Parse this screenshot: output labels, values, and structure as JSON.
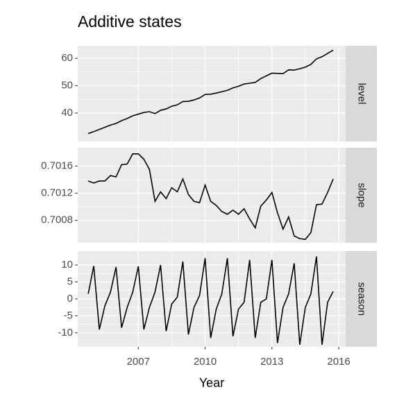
{
  "chart_data": {
    "type": "line",
    "title": "Additive states",
    "xlabel": "Year",
    "color": "#000000",
    "grid": true,
    "xlim": [
      2004.28,
      2016.31
    ],
    "xticks": [
      2007,
      2010,
      2013,
      2016
    ],
    "x": [
      2004.75,
      2005,
      2005.25,
      2005.5,
      2005.75,
      2006,
      2006.25,
      2006.5,
      2006.75,
      2007,
      2007.25,
      2007.5,
      2007.75,
      2008,
      2008.25,
      2008.5,
      2008.75,
      2009,
      2009.25,
      2009.5,
      2009.75,
      2010,
      2010.25,
      2010.5,
      2010.75,
      2011,
      2011.25,
      2011.5,
      2011.75,
      2012,
      2012.25,
      2012.5,
      2012.75,
      2013,
      2013.25,
      2013.5,
      2013.75,
      2014,
      2014.25,
      2014.5,
      2014.75,
      2015,
      2015.25,
      2015.5,
      2015.75
    ],
    "panels": [
      {
        "name": "level",
        "ylim": [
          29.6,
          64.6
        ],
        "yticks": [
          40,
          50,
          60
        ],
        "values": [
          32.5,
          33.2,
          34,
          34.8,
          35.6,
          36.2,
          37.2,
          38,
          39,
          39.6,
          40.2,
          40.5,
          39.8,
          41,
          41.5,
          42.5,
          43,
          44.2,
          44.3,
          44.8,
          45.5,
          46.8,
          46.9,
          47.3,
          47.8,
          48.3,
          49.2,
          49.8,
          50.6,
          50.9,
          51.2,
          52.6,
          53.6,
          54.6,
          54.5,
          54.4,
          55.8,
          55.7,
          56.2,
          56.8,
          57.8,
          59.8,
          60.6,
          61.8,
          63
        ]
      },
      {
        "name": "slope",
        "ylim": [
          0.70047,
          0.70187
        ],
        "yticks": [
          0.7008,
          0.7012,
          0.7016
        ],
        "values": [
          0.70138,
          0.70135,
          0.70138,
          0.70138,
          0.70146,
          0.70144,
          0.70162,
          0.70163,
          0.70178,
          0.70178,
          0.7017,
          0.70155,
          0.70108,
          0.70122,
          0.70112,
          0.70128,
          0.70122,
          0.70141,
          0.70118,
          0.70108,
          0.70106,
          0.70132,
          0.70108,
          0.70102,
          0.70093,
          0.70089,
          0.70095,
          0.70089,
          0.70097,
          0.70082,
          0.70069,
          0.70101,
          0.7011,
          0.70121,
          0.70091,
          0.70067,
          0.70085,
          0.70057,
          0.70053,
          0.70052,
          0.70062,
          0.70103,
          0.70104,
          0.70121,
          0.70141
        ]
      },
      {
        "name": "season",
        "ylim": [
          -14.1,
          14.1
        ],
        "yticks": [
          -10,
          -5,
          0,
          5,
          10
        ],
        "values": [
          1.5,
          9.7,
          -9,
          -2,
          2,
          9.4,
          -8.5,
          -2.5,
          2,
          9.6,
          -9,
          -2.5,
          2,
          10,
          -9.5,
          -1.5,
          0.5,
          11,
          -10.5,
          -2.5,
          1,
          12,
          -11.5,
          -3,
          1.5,
          12,
          -11,
          -3,
          -1,
          11.5,
          -11.5,
          -1,
          0,
          11.5,
          -13,
          -2.5,
          1.5,
          10.5,
          -13.5,
          -2.5,
          1.5,
          12.5,
          -13.5,
          -1,
          2.2
        ]
      }
    ]
  }
}
